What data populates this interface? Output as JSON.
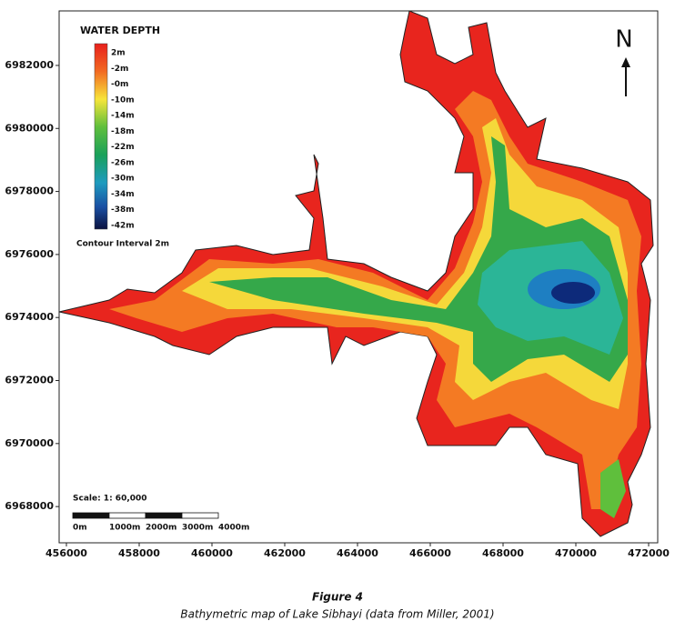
{
  "map": {
    "xlim": [
      455800,
      472250
    ],
    "ylim": [
      6966850,
      6983730
    ],
    "xticks": [
      456000,
      458000,
      460000,
      462000,
      464000,
      466000,
      468000,
      470000,
      472000
    ],
    "yticks": [
      6968000,
      6970000,
      6972000,
      6974000,
      6976000,
      6978000,
      6980000,
      6982000
    ],
    "north": "N"
  },
  "legend": {
    "title": "WATER DEPTH",
    "labels": [
      "2m",
      "-2m",
      "-0m",
      "-10m",
      "-14m",
      "-18m",
      "-22m",
      "-26m",
      "-30m",
      "-34m",
      "-38m",
      "-42m"
    ],
    "contour_interval": "Contour Interval 2m"
  },
  "scale": {
    "text": "Scale: 1: 60,000",
    "labels": [
      "0m",
      "1000m",
      "2000m",
      "3000m",
      "4000m"
    ]
  },
  "caption": {
    "title": "Figure 4",
    "text": "Bathymetric map of Lake Sibhayi (data from Miller, 2001)"
  }
}
